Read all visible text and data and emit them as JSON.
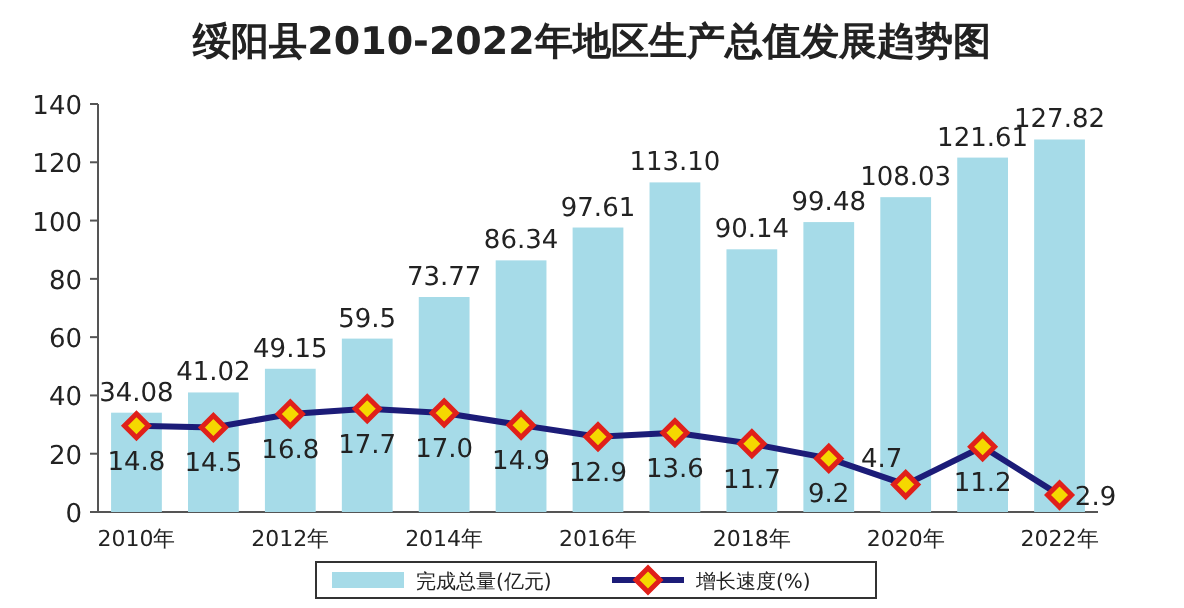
{
  "chart_data": {
    "type": "bar",
    "title": "绥阳县2010-2022年地区生产总值发展趋势图",
    "categories": [
      "2010年",
      null,
      "2012年",
      null,
      "2014年",
      null,
      "2016年",
      null,
      "2018年",
      null,
      "2020年",
      null,
      "2022年"
    ],
    "ylim": [
      0,
      140
    ],
    "yticks": [
      0,
      20,
      40,
      60,
      80,
      100,
      120,
      140
    ],
    "y2lim": [
      0,
      70
    ],
    "legend": "bottom",
    "grid": false,
    "series": [
      {
        "name": "完成总量(亿元)",
        "color": "#a6dbe8",
        "values": [
          34.08,
          41.02,
          49.15,
          59.5,
          73.77,
          86.34,
          97.61,
          113.1,
          90.14,
          99.48,
          108.03,
          121.61,
          127.82
        ],
        "value_labels": [
          "34.08",
          "41.02",
          "49.15",
          "59.5",
          "73.77",
          "86.34",
          "97.61",
          "113.10",
          "90.14",
          "99.48",
          "108.03",
          "121.61",
          "127.82"
        ]
      },
      {
        "name": "增长速度(%)",
        "type": "line",
        "axis": "y2",
        "color": "#1c1c78",
        "marker": "diamond",
        "line_style": "solid",
        "values": [
          14.8,
          14.5,
          16.8,
          17.7,
          17.0,
          14.9,
          12.9,
          13.6,
          11.7,
          9.2,
          4.7,
          11.2,
          2.9
        ],
        "value_labels": [
          "14.8",
          "14.5",
          "16.8",
          "17.7",
          "17.0",
          "14.9",
          "12.9",
          "13.6",
          "11.7",
          "9.2",
          "4.7",
          "11.2",
          "2.9"
        ]
      }
    ]
  }
}
